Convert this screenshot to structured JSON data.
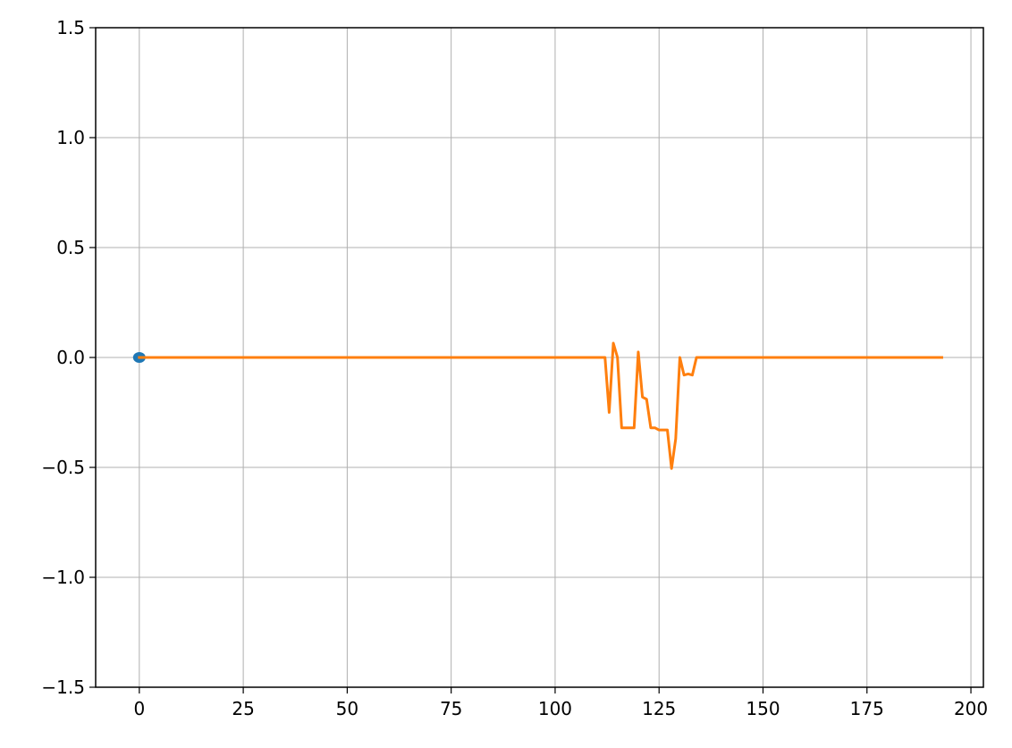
{
  "chart_data": {
    "type": "line",
    "title": "",
    "xlabel": "",
    "ylabel": "",
    "xlim": [
      -10.5,
      203
    ],
    "ylim": [
      -1.5,
      1.5
    ],
    "grid": true,
    "x_ticks": [
      0,
      25,
      50,
      75,
      100,
      125,
      150,
      175,
      200
    ],
    "x_tick_labels": [
      "0",
      "25",
      "50",
      "75",
      "100",
      "125",
      "150",
      "175",
      "200"
    ],
    "y_ticks": [
      -1.5,
      -1.0,
      -0.5,
      0.0,
      0.5,
      1.0,
      1.5
    ],
    "y_tick_labels": [
      "−1.5",
      "−1.0",
      "−0.5",
      "0.0",
      "0.5",
      "1.0",
      "1.5"
    ],
    "marker": {
      "x": 0,
      "y": 0,
      "color": "#1f77b4"
    },
    "series": [
      {
        "color": "#ff7f0e",
        "points": [
          [
            0,
            0
          ],
          [
            112,
            0
          ],
          [
            113,
            -0.25
          ],
          [
            114,
            0.065
          ],
          [
            115,
            0.0
          ],
          [
            116,
            -0.32
          ],
          [
            117,
            -0.32
          ],
          [
            118,
            -0.32
          ],
          [
            119,
            -0.32
          ],
          [
            120,
            0.025
          ],
          [
            121,
            -0.18
          ],
          [
            122,
            -0.19
          ],
          [
            123,
            -0.32
          ],
          [
            124,
            -0.32
          ],
          [
            125,
            -0.33
          ],
          [
            126,
            -0.33
          ],
          [
            127,
            -0.33
          ],
          [
            128,
            -0.505
          ],
          [
            129,
            -0.37
          ],
          [
            130,
            0.0
          ],
          [
            131,
            -0.08
          ],
          [
            132,
            -0.075
          ],
          [
            133,
            -0.08
          ],
          [
            134,
            0.0
          ],
          [
            193,
            0.0
          ]
        ]
      }
    ]
  }
}
